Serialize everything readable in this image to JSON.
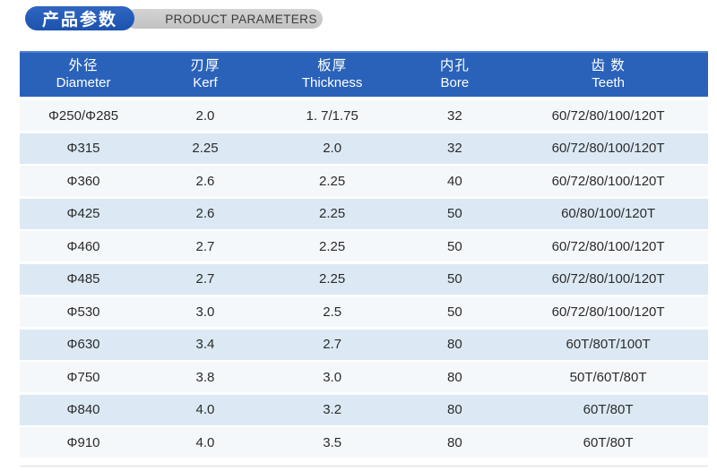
{
  "title": {
    "zh": "产品参数",
    "en": "PRODUCT PARAMETERS"
  },
  "colors": {
    "header_blue": "#2a62ba",
    "title_pill_blue": "#1e56b4",
    "subtitle_pill_gray": "#c6c6c6",
    "row_odd": "#f5f8fb",
    "row_even": "#dce9f4",
    "header_text": "#ffffff",
    "body_text": "#2b2b2b"
  },
  "table": {
    "columns": [
      {
        "zh": "外径",
        "en": "Diameter"
      },
      {
        "zh": "刃厚",
        "en": "Kerf"
      },
      {
        "zh": "板厚",
        "en": "Thickness"
      },
      {
        "zh": "内孔",
        "en": "Bore"
      },
      {
        "zh": "齿 数",
        "en": "Teeth"
      }
    ],
    "rows": [
      [
        "Φ250/Φ285",
        "2.0",
        "1. 7/1.75",
        "32",
        "60/72/80/100/120T"
      ],
      [
        "Φ315",
        "2.25",
        "2.0",
        "32",
        "60/72/80/100/120T"
      ],
      [
        "Φ360",
        "2.6",
        "2.25",
        "40",
        "60/72/80/100/120T"
      ],
      [
        "Φ425",
        "2.6",
        "2.25",
        "50",
        "60/80/100/120T"
      ],
      [
        "Φ460",
        "2.7",
        "2.25",
        "50",
        "60/72/80/100/120T"
      ],
      [
        "Φ485",
        "2.7",
        "2.25",
        "50",
        "60/72/80/100/120T"
      ],
      [
        "Φ530",
        "3.0",
        "2.5",
        "50",
        "60/72/80/100/120T"
      ],
      [
        "Φ630",
        "3.4",
        "2.7",
        "80",
        "60T/80T/100T"
      ],
      [
        "Φ750",
        "3.8",
        "3.0",
        "80",
        "50T/60T/80T"
      ],
      [
        "Φ840",
        "4.0",
        "3.2",
        "80",
        "60T/80T"
      ],
      [
        "Φ910",
        "4.0",
        "3.5",
        "80",
        "60T/80T"
      ]
    ]
  }
}
